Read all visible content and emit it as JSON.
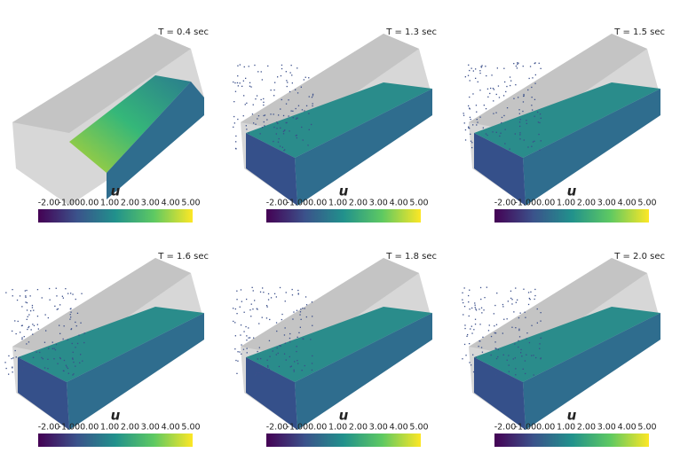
{
  "panels": [
    {
      "time": "T = 0.4 sec",
      "colorbar": {
        "title": "u",
        "ticks": [
          "-2.00",
          "-1.00",
          "0.00",
          "1.00",
          "2.00",
          "3.00",
          "4.00",
          "5.00"
        ]
      }
    },
    {
      "time": "T = 1.3 sec",
      "colorbar": {
        "title": "u",
        "ticks": [
          "-2.00",
          "-1.00",
          "0.00",
          "1.00",
          "2.00",
          "3.00",
          "4.00",
          "5.00"
        ]
      }
    },
    {
      "time": "T = 1.5 sec",
      "colorbar": {
        "title": "u",
        "ticks": [
          "-2.00",
          "-1.00",
          "0.00",
          "1.00",
          "2.00",
          "3.00",
          "4.00",
          "5.00"
        ]
      }
    },
    {
      "time": "T = 1.6 sec",
      "colorbar": {
        "title": "u",
        "ticks": [
          "-2.00",
          "-1.00",
          "0.00",
          "1.00",
          "2.00",
          "3.00",
          "4.00",
          "5.00"
        ]
      }
    },
    {
      "time": "T = 1.8 sec",
      "colorbar": {
        "title": "u",
        "ticks": [
          "-2.00",
          "-1.00",
          "0.00",
          "1.00",
          "2.00",
          "3.00",
          "4.00",
          "5.00"
        ]
      }
    },
    {
      "time": "T = 2.0 sec",
      "colorbar": {
        "title": "u",
        "ticks": [
          "-2.00",
          "-1.00",
          "0.00",
          "1.00",
          "2.00",
          "3.00",
          "4.00",
          "5.00"
        ]
      }
    }
  ]
}
